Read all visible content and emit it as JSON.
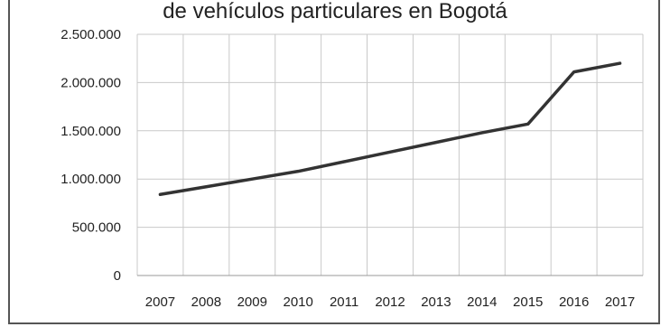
{
  "chart_data": {
    "type": "line",
    "title": "de vehículos particulares en Bogotá",
    "xlabel": "",
    "ylabel": "",
    "categories": [
      "2007",
      "2008",
      "2009",
      "2010",
      "2011",
      "2012",
      "2013",
      "2014",
      "2015",
      "2016",
      "2017"
    ],
    "series": [
      {
        "values": [
          840000,
          920000,
          1000000,
          1080000,
          1180000,
          1280000,
          1380000,
          1480000,
          1570000,
          2110000,
          2200000
        ]
      }
    ],
    "ylim": [
      0,
      2500000
    ],
    "yticks": [
      0,
      500000,
      1000000,
      1500000,
      2000000,
      2500000
    ],
    "yticklabels": [
      "0",
      "500.000",
      "1.000.000",
      "1.500.000",
      "2.000.000",
      "2.500.000"
    ],
    "grid": true,
    "legend": "none",
    "line_color": "#333333"
  }
}
